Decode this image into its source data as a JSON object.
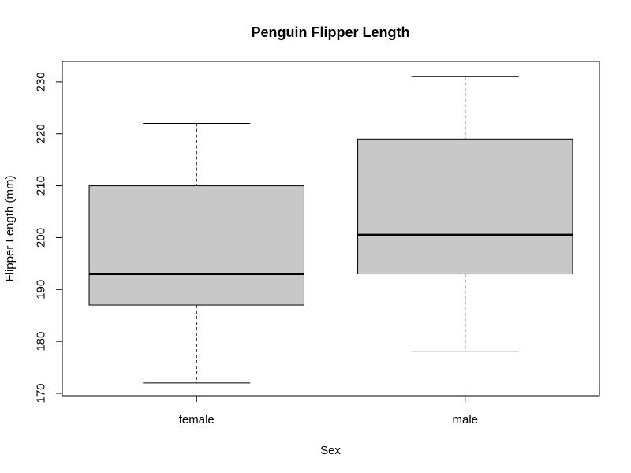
{
  "chart_data": {
    "type": "boxplot",
    "title": "Penguin Flipper Length",
    "xlabel": "Sex",
    "ylabel": "Flipper Length (mm)",
    "categories": [
      "female",
      "male"
    ],
    "boxes": [
      {
        "category": "female",
        "min": 172,
        "q1": 187,
        "median": 193,
        "q3": 210,
        "max": 222
      },
      {
        "category": "male",
        "min": 178,
        "q1": 193,
        "median": 200.5,
        "q3": 219,
        "max": 231
      }
    ],
    "ylim": [
      170,
      231.5
    ],
    "yticks": [
      170,
      180,
      190,
      200,
      210,
      220,
      230
    ],
    "grid": false,
    "legend": "none",
    "box_fill": "#c8c8c8",
    "line_color": "#000000"
  }
}
